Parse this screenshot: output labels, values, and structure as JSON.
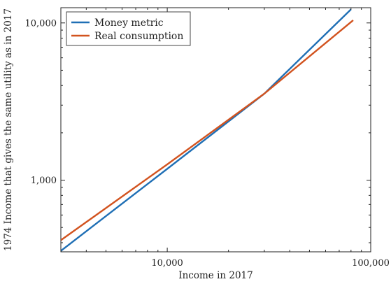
{
  "chart_data": {
    "type": "line",
    "title": "",
    "xlabel": "Income in 2017",
    "ylabel": "1974 Income that gives the same utility as in 2017",
    "x_scale": "log",
    "y_scale": "log",
    "xlim": [
      3000,
      100000
    ],
    "ylim": [
      350,
      12500
    ],
    "grid": false,
    "legend_position": "top-left",
    "x_ticks": [
      {
        "value": 10000,
        "label": "10,000"
      },
      {
        "value": 100000,
        "label": "100,000"
      }
    ],
    "y_ticks": [
      {
        "value": 1000,
        "label": "1,000"
      },
      {
        "value": 10000,
        "label": "10,000"
      }
    ],
    "series": [
      {
        "name": "Money metric",
        "color": "#1f6fb5",
        "x": [
          3000,
          10000,
          30000,
          80000
        ],
        "y": [
          355,
          1180,
          3550,
          12200
        ]
      },
      {
        "name": "Real consumption",
        "color": "#d2531f",
        "x": [
          3000,
          10000,
          30000,
          82000
        ],
        "y": [
          415,
          1260,
          3550,
          10400
        ]
      }
    ]
  }
}
